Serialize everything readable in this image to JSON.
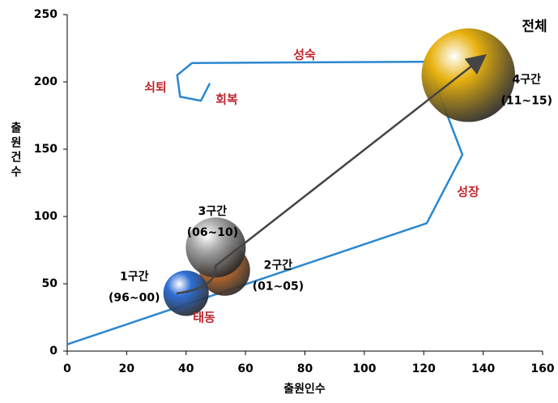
{
  "chart_data": {
    "type": "bubble",
    "x_label": "출원인수",
    "y_label": "출원건수",
    "xlim": [
      0,
      160
    ],
    "ylim": [
      0,
      250
    ],
    "xticks": [
      0,
      20,
      40,
      60,
      80,
      100,
      120,
      140,
      160
    ],
    "yticks": [
      0,
      50,
      100,
      150,
      200,
      250
    ],
    "path": {
      "color": "#2b87cf",
      "x": [
        0,
        121,
        133,
        121,
        42,
        37,
        38,
        45,
        48
      ],
      "y": [
        5,
        95,
        146,
        215,
        214,
        205,
        189,
        186,
        199
      ]
    },
    "bubbles": [
      {
        "label": [
          "1구간",
          "(96~00)"
        ],
        "x": 40,
        "y": 43,
        "size": 8,
        "color": "#2f6fd6"
      },
      {
        "label": [
          "2구간",
          "(01~05)"
        ],
        "x": 53,
        "y": 60,
        "size": 10,
        "color": "#d0702a"
      },
      {
        "label": [
          "3구간",
          "(06~10)"
        ],
        "x": 50,
        "y": 77,
        "size": 14,
        "color": "#a8a8a8"
      },
      {
        "label": [
          "4구간",
          "(11~15)"
        ],
        "x": 135,
        "y": 205,
        "size": 34,
        "color": "#e7b10e"
      }
    ],
    "annotations": [
      {
        "text": "쇠퇴",
        "color": "#c0272d"
      },
      {
        "text": "회복",
        "color": "#c0272d"
      },
      {
        "text": "성숙",
        "color": "#c0272d"
      },
      {
        "text": "성장",
        "color": "#c0272d"
      },
      {
        "text": "태동",
        "color": "#c0272d"
      },
      {
        "text": "전체",
        "color": "#000000"
      }
    ]
  }
}
